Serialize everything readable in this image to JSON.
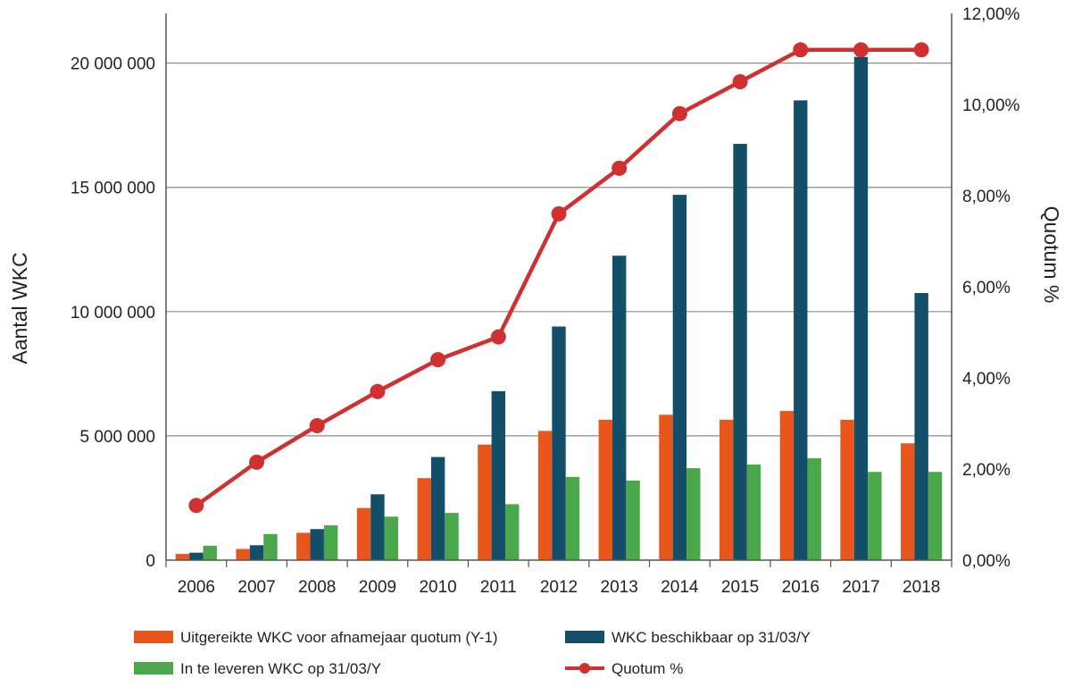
{
  "chart_data": {
    "type": "bar",
    "categories": [
      "2006",
      "2007",
      "2008",
      "2009",
      "2010",
      "2011",
      "2012",
      "2013",
      "2014",
      "2015",
      "2016",
      "2017",
      "2018"
    ],
    "series": [
      {
        "name": "Uitgereikte WKC voor afnamejaar quotum (Y-1)",
        "type": "bar",
        "axis": "left",
        "color": "#e8561c",
        "values": [
          250000,
          450000,
          1100000,
          2100000,
          3300000,
          4650000,
          5200000,
          5650000,
          5850000,
          5650000,
          6000000,
          5650000,
          4700000
        ]
      },
      {
        "name": "WKC beschikbaar op 31/03/Y",
        "type": "bar",
        "axis": "left",
        "color": "#134f69",
        "values": [
          300000,
          600000,
          1250000,
          2650000,
          4150000,
          6800000,
          9400000,
          12250000,
          14700000,
          16750000,
          18500000,
          20250000,
          10750000
        ]
      },
      {
        "name": "In te leveren WKC op 31/03/Y",
        "type": "bar",
        "axis": "left",
        "color": "#4aa84a",
        "values": [
          580000,
          1050000,
          1400000,
          1750000,
          1900000,
          2250000,
          3350000,
          3200000,
          3700000,
          3850000,
          4100000,
          3550000,
          3550000
        ]
      },
      {
        "name": "Quotum %",
        "type": "line",
        "axis": "right",
        "color": "#d03030",
        "values": [
          1.2,
          2.15,
          2.95,
          3.7,
          4.4,
          4.9,
          7.6,
          8.6,
          9.8,
          10.5,
          11.2,
          11.2,
          11.2
        ]
      }
    ],
    "ylabel": "Aantal WKC",
    "y2label": "Quotum %",
    "ylim": [
      0,
      22000000
    ],
    "y2lim": [
      0,
      12
    ],
    "yticks": [
      0,
      5000000,
      10000000,
      15000000,
      20000000
    ],
    "ytick_labels": [
      "0",
      "5 000 000",
      "10 000 000",
      "15 000 000",
      "20 000 000"
    ],
    "y2ticks": [
      0,
      2,
      4,
      6,
      8,
      10,
      12
    ],
    "y2tick_labels": [
      "0,00%",
      "2,00%",
      "4,00%",
      "6,00%",
      "8,00%",
      "10,00%",
      "12,00%"
    ],
    "grid": true,
    "legend_position": "bottom"
  }
}
